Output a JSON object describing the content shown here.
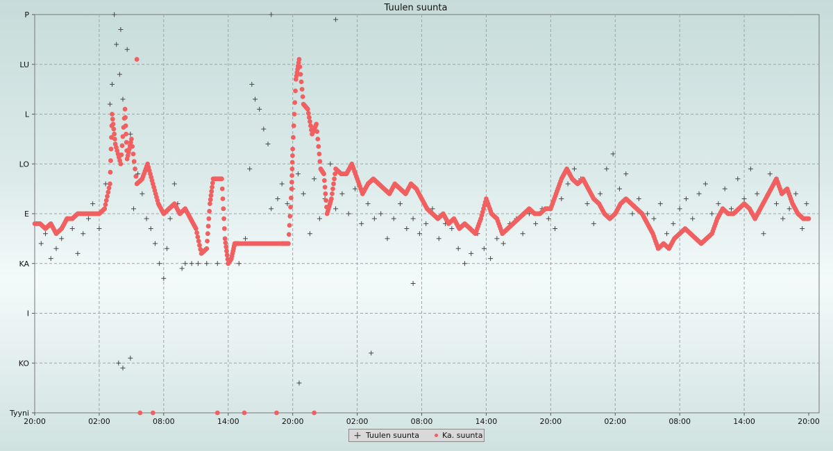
{
  "chart_data": {
    "type": "scatter",
    "title": "Tuulen suunta",
    "xlabel": "",
    "ylabel": "",
    "y_ticks": [
      "Tyyni",
      "KO",
      "I",
      "KA",
      "E",
      "LO",
      "L",
      "LU",
      "P"
    ],
    "x_ticks": [
      "20:00",
      "02:00",
      "08:00",
      "14:00",
      "20:00",
      "02:00",
      "08:00",
      "14:00",
      "20:00",
      "02:00",
      "08:00",
      "14:00",
      "20:00"
    ],
    "x_range_hours": [
      0,
      72
    ],
    "y_range": [
      0,
      8
    ],
    "grid": true,
    "legend_position": "bottom-center",
    "series": [
      {
        "name": "Tuulen suunta",
        "marker": "plus",
        "color": "#444444",
        "points_hours_dir": [
          [
            0.2,
            3.8
          ],
          [
            0.6,
            3.4
          ],
          [
            1.0,
            3.6
          ],
          [
            1.5,
            3.1
          ],
          [
            2.0,
            3.3
          ],
          [
            2.5,
            3.5
          ],
          [
            3.0,
            3.9
          ],
          [
            3.5,
            3.7
          ],
          [
            4.0,
            3.2
          ],
          [
            4.5,
            3.6
          ],
          [
            5.0,
            3.9
          ],
          [
            5.4,
            4.2
          ],
          [
            6.0,
            3.7
          ],
          [
            6.6,
            4.6
          ],
          [
            7.0,
            6.2
          ],
          [
            7.2,
            6.6
          ],
          [
            7.6,
            7.4
          ],
          [
            7.9,
            6.8
          ],
          [
            8.2,
            6.3
          ],
          [
            8.6,
            7.3
          ],
          [
            8.9,
            5.6
          ],
          [
            9.2,
            4.1
          ],
          [
            9.6,
            4.8
          ],
          [
            10.0,
            4.4
          ],
          [
            10.4,
            3.9
          ],
          [
            10.8,
            3.7
          ],
          [
            11.2,
            3.4
          ],
          [
            11.6,
            3.0
          ],
          [
            12.0,
            2.7
          ],
          [
            12.3,
            3.3
          ],
          [
            12.6,
            3.9
          ],
          [
            13.0,
            4.6
          ],
          [
            13.3,
            4.2
          ],
          [
            13.7,
            2.9
          ],
          [
            14.0,
            3.0
          ],
          [
            14.6,
            3.0
          ],
          [
            15.2,
            3.0
          ],
          [
            16.0,
            3.0
          ],
          [
            17.0,
            3.0
          ],
          [
            18.0,
            3.0
          ],
          [
            19.0,
            3.0
          ],
          [
            19.6,
            3.5
          ],
          [
            20.0,
            4.9
          ],
          [
            20.2,
            6.6
          ],
          [
            20.5,
            6.3
          ],
          [
            20.9,
            6.1
          ],
          [
            21.3,
            5.7
          ],
          [
            21.7,
            5.4
          ],
          [
            22.0,
            4.1
          ],
          [
            22.6,
            4.3
          ],
          [
            23.0,
            4.6
          ],
          [
            23.5,
            4.2
          ],
          [
            24.0,
            4.5
          ],
          [
            24.5,
            4.8
          ],
          [
            25.0,
            4.4
          ],
          [
            25.6,
            3.6
          ],
          [
            26.0,
            4.7
          ],
          [
            26.5,
            3.9
          ],
          [
            27.0,
            4.3
          ],
          [
            27.5,
            5.0
          ],
          [
            28.0,
            4.1
          ],
          [
            28.6,
            4.4
          ],
          [
            29.2,
            4.0
          ],
          [
            29.8,
            4.5
          ],
          [
            30.4,
            3.8
          ],
          [
            31.0,
            4.2
          ],
          [
            31.6,
            3.9
          ],
          [
            32.2,
            4.0
          ],
          [
            32.8,
            3.5
          ],
          [
            33.4,
            3.9
          ],
          [
            34.0,
            4.2
          ],
          [
            34.6,
            3.7
          ],
          [
            35.2,
            3.9
          ],
          [
            35.8,
            3.6
          ],
          [
            36.4,
            3.8
          ],
          [
            37.0,
            4.1
          ],
          [
            37.6,
            3.5
          ],
          [
            38.2,
            3.8
          ],
          [
            38.8,
            3.7
          ],
          [
            39.4,
            3.3
          ],
          [
            40.0,
            3.0
          ],
          [
            40.6,
            3.2
          ],
          [
            41.2,
            3.6
          ],
          [
            41.8,
            3.3
          ],
          [
            42.4,
            3.1
          ],
          [
            43.0,
            3.5
          ],
          [
            43.6,
            3.4
          ],
          [
            44.2,
            3.8
          ],
          [
            44.8,
            3.9
          ],
          [
            45.4,
            3.6
          ],
          [
            46.0,
            4.0
          ],
          [
            46.6,
            3.8
          ],
          [
            47.2,
            4.1
          ],
          [
            47.8,
            3.9
          ],
          [
            48.4,
            3.7
          ],
          [
            49.0,
            4.3
          ],
          [
            49.6,
            4.6
          ],
          [
            50.2,
            4.9
          ],
          [
            50.8,
            4.7
          ],
          [
            51.4,
            4.2
          ],
          [
            52.0,
            3.8
          ],
          [
            52.6,
            4.4
          ],
          [
            53.2,
            4.9
          ],
          [
            53.8,
            5.2
          ],
          [
            54.4,
            4.5
          ],
          [
            55.0,
            4.8
          ],
          [
            55.6,
            4.0
          ],
          [
            56.2,
            4.3
          ],
          [
            57.0,
            4.0
          ],
          [
            57.6,
            3.9
          ],
          [
            58.2,
            4.2
          ],
          [
            58.8,
            3.6
          ],
          [
            59.4,
            3.8
          ],
          [
            60.0,
            4.1
          ],
          [
            60.6,
            4.3
          ],
          [
            61.2,
            3.9
          ],
          [
            61.8,
            4.4
          ],
          [
            62.4,
            4.6
          ],
          [
            63.0,
            4.0
          ],
          [
            63.6,
            4.2
          ],
          [
            64.2,
            4.5
          ],
          [
            64.8,
            4.1
          ],
          [
            65.4,
            4.7
          ],
          [
            66.0,
            4.3
          ],
          [
            66.6,
            4.9
          ],
          [
            67.2,
            4.4
          ],
          [
            67.8,
            3.6
          ],
          [
            68.4,
            4.8
          ],
          [
            69.0,
            4.2
          ],
          [
            69.6,
            3.9
          ],
          [
            70.2,
            4.1
          ],
          [
            70.8,
            4.4
          ],
          [
            71.4,
            3.7
          ],
          [
            71.8,
            4.2
          ],
          [
            7.4,
            8.0
          ],
          [
            8.0,
            7.7
          ],
          [
            7.8,
            1.0
          ],
          [
            8.2,
            0.9
          ],
          [
            8.9,
            1.1
          ],
          [
            22.0,
            8.0
          ],
          [
            28.0,
            7.9
          ],
          [
            24.6,
            0.6
          ],
          [
            31.3,
            1.2
          ],
          [
            35.2,
            2.6
          ]
        ]
      },
      {
        "name": "Ka. suunta",
        "marker": "dot",
        "color": "#f06060",
        "points_hours_dir": [
          [
            0.0,
            3.8
          ],
          [
            0.5,
            3.8
          ],
          [
            1.0,
            3.7
          ],
          [
            1.5,
            3.8
          ],
          [
            2.0,
            3.6
          ],
          [
            2.5,
            3.7
          ],
          [
            3.0,
            3.9
          ],
          [
            3.5,
            3.9
          ],
          [
            4.0,
            4.0
          ],
          [
            4.5,
            4.0
          ],
          [
            5.0,
            4.0
          ],
          [
            5.5,
            4.0
          ],
          [
            6.0,
            4.0
          ],
          [
            6.5,
            4.1
          ],
          [
            7.0,
            4.6
          ],
          [
            7.2,
            6.0
          ],
          [
            7.5,
            5.4
          ],
          [
            8.0,
            5.0
          ],
          [
            8.4,
            6.1
          ],
          [
            8.6,
            5.1
          ],
          [
            9.0,
            5.5
          ],
          [
            9.5,
            4.6
          ],
          [
            10.0,
            4.7
          ],
          [
            10.5,
            5.0
          ],
          [
            11.0,
            4.6
          ],
          [
            11.5,
            4.2
          ],
          [
            12.0,
            4.0
          ],
          [
            12.5,
            4.1
          ],
          [
            13.0,
            4.2
          ],
          [
            13.5,
            4.0
          ],
          [
            14.0,
            4.1
          ],
          [
            14.5,
            3.9
          ],
          [
            15.0,
            3.7
          ],
          [
            15.5,
            3.2
          ],
          [
            16.0,
            3.3
          ],
          [
            16.3,
            4.2
          ],
          [
            16.6,
            4.7
          ],
          [
            17.0,
            4.7
          ],
          [
            17.4,
            4.7
          ],
          [
            17.7,
            3.5
          ],
          [
            18.0,
            3.0
          ],
          [
            18.3,
            3.1
          ],
          [
            18.6,
            3.4
          ],
          [
            19.0,
            3.4
          ],
          [
            20.0,
            3.4
          ],
          [
            21.0,
            3.4
          ],
          [
            22.0,
            3.4
          ],
          [
            23.0,
            3.4
          ],
          [
            23.6,
            3.4
          ],
          [
            23.9,
            4.5
          ],
          [
            24.0,
            5.3
          ],
          [
            24.3,
            6.7
          ],
          [
            24.6,
            7.1
          ],
          [
            25.0,
            6.2
          ],
          [
            25.4,
            6.1
          ],
          [
            25.8,
            5.6
          ],
          [
            26.2,
            5.8
          ],
          [
            26.6,
            4.9
          ],
          [
            26.9,
            4.8
          ],
          [
            27.2,
            4.0
          ],
          [
            27.6,
            4.3
          ],
          [
            28.0,
            4.9
          ],
          [
            28.5,
            4.8
          ],
          [
            29.0,
            4.8
          ],
          [
            29.5,
            5.0
          ],
          [
            30.0,
            4.7
          ],
          [
            30.5,
            4.4
          ],
          [
            31.0,
            4.6
          ],
          [
            31.5,
            4.7
          ],
          [
            32.0,
            4.6
          ],
          [
            32.5,
            4.5
          ],
          [
            33.0,
            4.4
          ],
          [
            33.5,
            4.6
          ],
          [
            34.0,
            4.5
          ],
          [
            34.5,
            4.4
          ],
          [
            35.0,
            4.6
          ],
          [
            35.5,
            4.5
          ],
          [
            36.0,
            4.3
          ],
          [
            36.5,
            4.1
          ],
          [
            37.0,
            4.0
          ],
          [
            37.5,
            3.9
          ],
          [
            38.0,
            4.0
          ],
          [
            38.5,
            3.8
          ],
          [
            39.0,
            3.9
          ],
          [
            39.5,
            3.7
          ],
          [
            40.0,
            3.8
          ],
          [
            40.5,
            3.7
          ],
          [
            41.0,
            3.6
          ],
          [
            41.5,
            3.9
          ],
          [
            42.0,
            4.3
          ],
          [
            42.5,
            4.0
          ],
          [
            43.0,
            3.9
          ],
          [
            43.5,
            3.6
          ],
          [
            44.0,
            3.7
          ],
          [
            44.5,
            3.8
          ],
          [
            45.0,
            3.9
          ],
          [
            45.5,
            4.0
          ],
          [
            46.0,
            4.1
          ],
          [
            46.5,
            4.0
          ],
          [
            47.0,
            4.0
          ],
          [
            47.5,
            4.1
          ],
          [
            48.0,
            4.1
          ],
          [
            48.5,
            4.4
          ],
          [
            49.0,
            4.7
          ],
          [
            49.5,
            4.9
          ],
          [
            50.0,
            4.7
          ],
          [
            50.5,
            4.6
          ],
          [
            51.0,
            4.7
          ],
          [
            51.5,
            4.5
          ],
          [
            52.0,
            4.3
          ],
          [
            52.5,
            4.2
          ],
          [
            53.0,
            4.0
          ],
          [
            53.5,
            3.9
          ],
          [
            54.0,
            4.0
          ],
          [
            54.5,
            4.2
          ],
          [
            55.0,
            4.3
          ],
          [
            55.5,
            4.2
          ],
          [
            56.0,
            4.1
          ],
          [
            56.5,
            4.0
          ],
          [
            57.0,
            3.8
          ],
          [
            57.5,
            3.6
          ],
          [
            58.0,
            3.3
          ],
          [
            58.5,
            3.4
          ],
          [
            59.0,
            3.3
          ],
          [
            59.5,
            3.5
          ],
          [
            60.0,
            3.6
          ],
          [
            60.5,
            3.7
          ],
          [
            61.0,
            3.6
          ],
          [
            61.5,
            3.5
          ],
          [
            62.0,
            3.4
          ],
          [
            62.5,
            3.5
          ],
          [
            63.0,
            3.6
          ],
          [
            63.5,
            3.9
          ],
          [
            64.0,
            4.1
          ],
          [
            64.5,
            4.0
          ],
          [
            65.0,
            4.0
          ],
          [
            65.5,
            4.1
          ],
          [
            66.0,
            4.2
          ],
          [
            66.5,
            4.1
          ],
          [
            67.0,
            3.9
          ],
          [
            67.5,
            4.1
          ],
          [
            68.0,
            4.3
          ],
          [
            68.5,
            4.5
          ],
          [
            69.0,
            4.7
          ],
          [
            69.5,
            4.4
          ],
          [
            70.0,
            4.5
          ],
          [
            70.5,
            4.2
          ],
          [
            71.0,
            4.0
          ],
          [
            71.5,
            3.9
          ],
          [
            72.0,
            3.9
          ],
          [
            9.5,
            7.1
          ],
          [
            9.8,
            0.0
          ],
          [
            11.0,
            0.0
          ],
          [
            17.0,
            0.0
          ],
          [
            19.5,
            0.0
          ],
          [
            22.5,
            0.0
          ],
          [
            26.0,
            0.0
          ]
        ]
      }
    ]
  },
  "legend": [
    {
      "label": "Tuulen suunta"
    },
    {
      "label": "Ka. suunta"
    }
  ]
}
